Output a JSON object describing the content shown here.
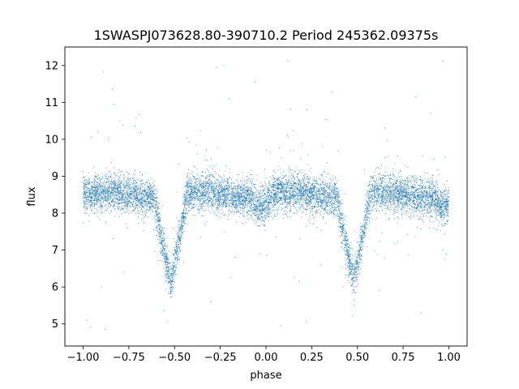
{
  "chart_data": {
    "type": "scatter",
    "title": "1SWASPJ073628.80-390710.2 Period 245362.09375s",
    "xlabel": "phase",
    "ylabel": "flux",
    "xlim": [
      -1.1,
      1.1
    ],
    "ylim": [
      4.4,
      12.5
    ],
    "xticks": [
      -1.0,
      -0.75,
      -0.5,
      -0.25,
      0.0,
      0.25,
      0.5,
      0.75,
      1.0
    ],
    "xtick_labels": [
      "−1.00",
      "−0.75",
      "−0.50",
      "−0.25",
      "0.00",
      "0.25",
      "0.50",
      "0.75",
      "1.00"
    ],
    "yticks": [
      5,
      6,
      7,
      8,
      9,
      10,
      11,
      12
    ],
    "ytick_labels": [
      "5",
      "6",
      "7",
      "8",
      "9",
      "10",
      "11",
      "12"
    ],
    "grid": false,
    "marker_color": "#1f77b4",
    "light_curve_model": {
      "baseline_flux": 8.5,
      "primary_eclipse_phases": [
        -0.52,
        0.48
      ],
      "eclipse_min_flux": 5.8,
      "eclipse_half_width_phase": 0.09,
      "secondary_dip_phases": [
        -0.02,
        0.98
      ],
      "secondary_dip_flux": 8.2,
      "scatter_sigma": 0.25
    },
    "outlier_points": [
      {
        "x": -0.89,
        "y": 11.82
      },
      {
        "x": -0.84,
        "y": 11.35
      },
      {
        "x": -0.83,
        "y": 10.95
      },
      {
        "x": -0.71,
        "y": 10.58
      },
      {
        "x": -0.27,
        "y": 11.95
      },
      {
        "x": -0.23,
        "y": 12.0
      },
      {
        "x": -0.2,
        "y": 11.1
      },
      {
        "x": -0.06,
        "y": 11.55
      },
      {
        "x": 0.12,
        "y": 12.12
      },
      {
        "x": 0.36,
        "y": 11.28
      },
      {
        "x": 0.82,
        "y": 11.15
      },
      {
        "x": 0.9,
        "y": 10.7
      },
      {
        "x": 0.97,
        "y": 12.12
      },
      {
        "x": -0.92,
        "y": 10.2
      },
      {
        "x": 0.65,
        "y": 10.3
      },
      {
        "x": -0.96,
        "y": 4.9
      },
      {
        "x": -0.88,
        "y": 4.85
      },
      {
        "x": 0.08,
        "y": 4.95
      },
      {
        "x": 0.22,
        "y": 5.05
      },
      {
        "x": -0.98,
        "y": 5.1
      },
      {
        "x": 0.85,
        "y": 5.3
      },
      {
        "x": -0.3,
        "y": 5.6
      },
      {
        "x": 0.62,
        "y": 5.9
      },
      {
        "x": -0.9,
        "y": 6.0
      },
      {
        "x": 0.18,
        "y": 6.15
      },
      {
        "x": -0.78,
        "y": 6.4
      },
      {
        "x": 0.3,
        "y": 6.6
      }
    ]
  }
}
